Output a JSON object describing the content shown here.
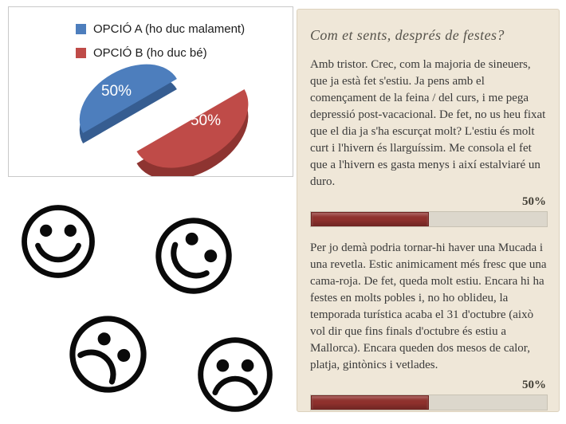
{
  "chart_data": {
    "type": "pie",
    "style": "3d-exploded",
    "title": "",
    "legend_position": "top",
    "label_color": "#ffffff",
    "slices": [
      {
        "label": "OPCIÓ A (ho duc malament)",
        "value": 50,
        "display": "50%",
        "color": "#4d7ebd",
        "side_color": "#365d91"
      },
      {
        "label": "OPCIÓ B (ho duc bé)",
        "value": 50,
        "display": "50%",
        "color": "#bf4b48",
        "side_color": "#8e3431"
      }
    ]
  },
  "emoticons": {
    "items": [
      {
        "name": "happy-face-upright",
        "mood": "happy"
      },
      {
        "name": "happy-face-tilted",
        "mood": "happy"
      },
      {
        "name": "sad-face-tilted",
        "mood": "sad"
      },
      {
        "name": "sad-face-upright",
        "mood": "sad"
      }
    ]
  },
  "poll": {
    "title": "Com et sents, després de festes?",
    "responses": [
      {
        "text": "Amb tristor. Crec, com la majoria de sineuers, que ja està fet s'estiu. Ja pens amb el començament de la feina / del curs, i me pega depressió post-vacacional. De fet, no us heu fixat que el dia ja s'ha escurçat molt? L'estiu és molt curt i l'hivern és llarguíssim. Me consola el fet que a l'hivern es gasta menys i així estalviaré un duro.",
        "percent": 50,
        "percent_label": "50%"
      },
      {
        "text": "Per jo demà podria tornar-hi haver una Mucada i una revetla. Estic animicament més fresc que una cama-roja. De fet, queda molt estiu. Encara hi ha festes en molts pobles i, no ho oblideu, la temporada turística acaba el 31 d'octubre (això vol dir que fins finals d'octubre és estiu a Mallorca). Encara queden dos mesos de calor, platja, gintònics i vetlades.",
        "percent": 50,
        "percent_label": "50%"
      }
    ],
    "colors": {
      "panel_bg": "#efe7d8",
      "bar_fill": "#8f312d",
      "bar_track": "#dcd7cc"
    }
  }
}
